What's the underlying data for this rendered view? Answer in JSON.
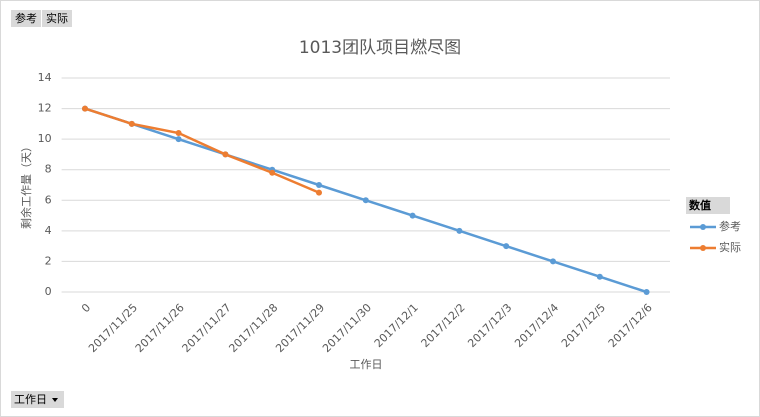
{
  "chart_data": {
    "type": "line",
    "title": "1013团队项目燃尽图",
    "x_label": "工作日",
    "y_label": "剩余工作量（天）",
    "legend_title": "数值",
    "legend": "right",
    "field_buttons": [
      "参考",
      "实际"
    ],
    "axis_field_button": "工作日",
    "categories": [
      "0",
      "2017/11/25",
      "2017/11/26",
      "2017/11/27",
      "2017/11/28",
      "2017/11/29",
      "2017/11/30",
      "2017/12/1",
      "2017/12/2",
      "2017/12/3",
      "2017/12/4",
      "2017/12/5",
      "2017/12/6"
    ],
    "series": [
      {
        "name": "参考",
        "color": "#5b9bd5",
        "values": [
          12,
          11,
          10,
          9,
          8,
          7,
          6,
          5,
          4,
          3,
          2,
          1,
          0
        ]
      },
      {
        "name": "实际",
        "color": "#ed7d31",
        "values": [
          12,
          11,
          10.4,
          9,
          7.8,
          6.5,
          null,
          null,
          null,
          null,
          null,
          null,
          null
        ]
      }
    ],
    "ylim": [
      0,
      14
    ],
    "yticks": [
      0,
      2,
      4,
      6,
      8,
      10,
      12,
      14
    ],
    "grid": true
  }
}
